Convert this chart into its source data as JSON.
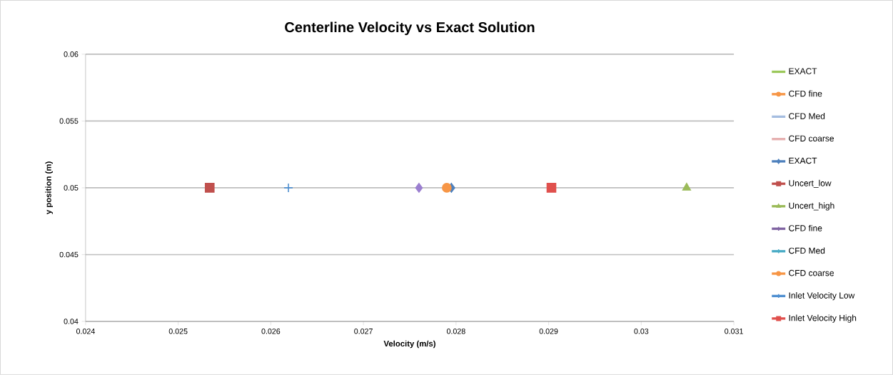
{
  "chart_data": {
    "type": "scatter",
    "title": "Centerline Velocity vs Exact Solution",
    "xlabel": "Velocity (m/s)",
    "ylabel": "y position (m)",
    "xlim": [
      0.024,
      0.031
    ],
    "xticks": [
      0.024,
      0.025,
      0.026,
      0.027,
      0.028,
      0.029,
      0.03,
      0.031
    ],
    "ylim": [
      0.04,
      0.06
    ],
    "yticks": [
      0.04,
      0.045,
      0.05,
      0.055,
      0.06
    ],
    "grid": "y",
    "legend": "right",
    "series": [
      {
        "name": "EXACT",
        "color": "#9bc85a",
        "marker": "none"
      },
      {
        "name": "CFD fine",
        "color": "#f79646",
        "marker": "circle"
      },
      {
        "name": "CFD Med",
        "color": "#a5bde0",
        "marker": "none"
      },
      {
        "name": "CFD coarse",
        "color": "#e6b0b0",
        "marker": "none"
      },
      {
        "name": "EXACT",
        "color": "#4f81bd",
        "marker": "diamond",
        "x": [
          0.02795
        ],
        "values": [
          0.05
        ]
      },
      {
        "name": "Uncert_low",
        "color": "#c0504d",
        "marker": "square",
        "x": [
          0.02534
        ],
        "values": [
          0.05
        ]
      },
      {
        "name": "Uncert_high",
        "color": "#9bbb59",
        "marker": "triangle",
        "x": [
          0.03049
        ],
        "values": [
          0.05
        ]
      },
      {
        "name": "CFD fine",
        "color": "#8064a2",
        "marker": "cross"
      },
      {
        "name": "CFD Med",
        "color": "#4bacc6",
        "marker": "cross"
      },
      {
        "name": "CFD coarse",
        "color": "#f79646",
        "marker": "circle",
        "x": [
          0.0279
        ],
        "values": [
          0.05
        ]
      },
      {
        "name": "Inlet Velocity Low",
        "color": "#4f8fd0",
        "marker": "cross",
        "x": [
          0.02619
        ],
        "values": [
          0.05
        ]
      },
      {
        "name": "Inlet Velocity High",
        "color": "#e0504d",
        "marker": "square",
        "x": [
          0.02903
        ],
        "values": [
          0.05
        ]
      },
      {
        "color": "#9b7fd0",
        "marker": "diamond",
        "x": [
          0.0276
        ],
        "values": [
          0.05
        ]
      }
    ]
  }
}
